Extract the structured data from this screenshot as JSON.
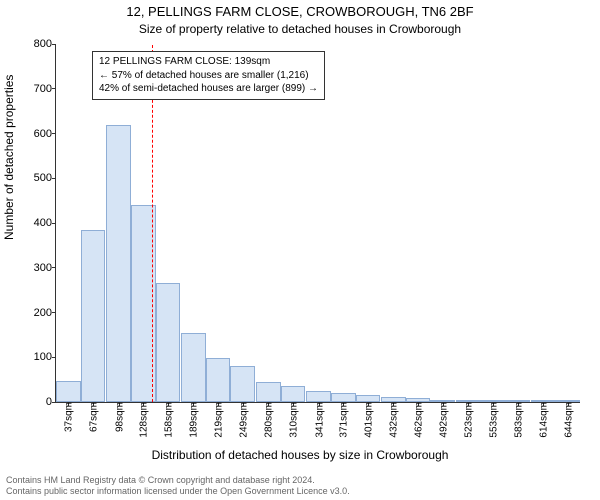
{
  "chart": {
    "type": "histogram",
    "title": "12, PELLINGS FARM CLOSE, CROWBOROUGH, TN6 2BF",
    "subtitle": "Size of property relative to detached houses in Crowborough",
    "ylabel": "Number of detached properties",
    "xlabel": "Distribution of detached houses by size in Crowborough",
    "background_color": "#ffffff",
    "axis_color": "#333333",
    "bar_fill": "#d6e4f5",
    "bar_stroke": "#8faed6",
    "reference_line_color": "#ff0000",
    "reference_x_value": 139,
    "ylim": [
      0,
      800
    ],
    "ytick_step": 100,
    "xlim": [
      22,
      660
    ],
    "xticks": [
      37,
      67,
      98,
      128,
      158,
      189,
      219,
      249,
      280,
      310,
      341,
      371,
      401,
      432,
      462,
      492,
      523,
      553,
      583,
      614,
      644
    ],
    "xtick_labels": [
      "37sqm",
      "67sqm",
      "98sqm",
      "128sqm",
      "158sqm",
      "189sqm",
      "219sqm",
      "249sqm",
      "280sqm",
      "310sqm",
      "341sqm",
      "371sqm",
      "401sqm",
      "432sqm",
      "462sqm",
      "492sqm",
      "523sqm",
      "553sqm",
      "583sqm",
      "614sqm",
      "644sqm"
    ],
    "bars": [
      {
        "center": 37,
        "count": 48
      },
      {
        "center": 67,
        "count": 385
      },
      {
        "center": 98,
        "count": 620
      },
      {
        "center": 128,
        "count": 440
      },
      {
        "center": 158,
        "count": 265
      },
      {
        "center": 189,
        "count": 155
      },
      {
        "center": 219,
        "count": 98
      },
      {
        "center": 249,
        "count": 80
      },
      {
        "center": 280,
        "count": 45
      },
      {
        "center": 310,
        "count": 35
      },
      {
        "center": 341,
        "count": 25
      },
      {
        "center": 371,
        "count": 20
      },
      {
        "center": 401,
        "count": 15
      },
      {
        "center": 432,
        "count": 12
      },
      {
        "center": 462,
        "count": 10
      },
      {
        "center": 492,
        "count": 4
      },
      {
        "center": 523,
        "count": 3
      },
      {
        "center": 553,
        "count": 2
      },
      {
        "center": 583,
        "count": 2
      },
      {
        "center": 614,
        "count": 2
      },
      {
        "center": 644,
        "count": 1
      }
    ],
    "bar_width_sqm": 30,
    "annotation": {
      "lines": [
        "12 PELLINGS FARM CLOSE: 139sqm",
        "← 57% of detached houses are smaller (1,216)",
        "42% of semi-detached houses are larger (899) →"
      ],
      "box_border": "#333333",
      "box_bg": "#ffffff",
      "fontsize": 10
    },
    "footer": {
      "line1": "Contains HM Land Registry data © Crown copyright and database right 2024.",
      "line2": "Contains public sector information licensed under the Open Government Licence v3.0.",
      "color": "#666666",
      "fontsize": 9
    },
    "title_fontsize": 13,
    "subtitle_fontsize": 12,
    "label_fontsize": 12,
    "tick_fontsize": 11
  }
}
